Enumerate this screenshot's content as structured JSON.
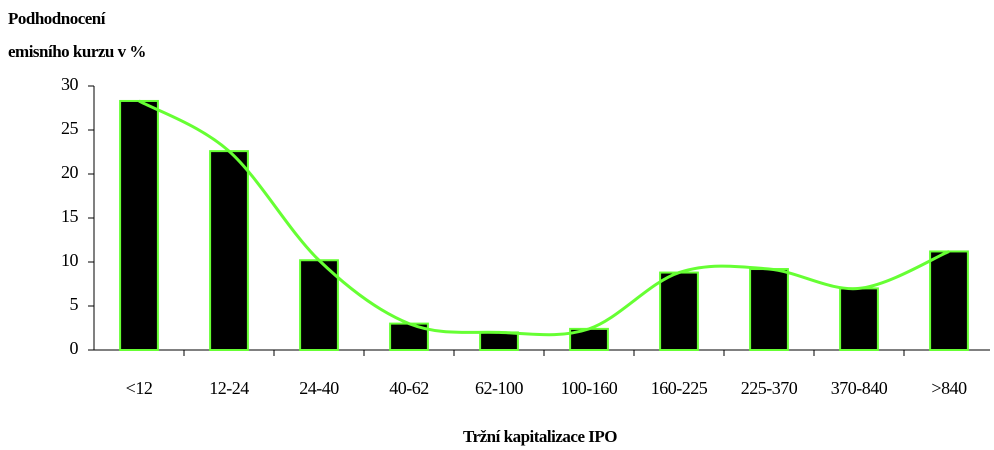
{
  "chart_data": {
    "type": "bar",
    "y_label": [
      "Podhodnocení",
      "emisního kurzu v %"
    ],
    "x_label": "Tržní kapitalizace IPO",
    "categories": [
      "<12",
      "12-24",
      "24-40",
      "40-62",
      "62-100",
      "100-160",
      "160-225",
      "225-370",
      "370-840",
      ">840"
    ],
    "values": [
      28.3,
      22.6,
      10.2,
      3.0,
      2.0,
      2.4,
      8.8,
      9.2,
      7.0,
      11.2
    ],
    "color": "#000000",
    "edge_color": "#66ff33",
    "smooth_line": true,
    "line_color": "#66ff33",
    "ylim": [
      0,
      30
    ],
    "yticks": [
      0,
      5,
      10,
      15,
      20,
      25,
      30
    ],
    "grid": false
  }
}
